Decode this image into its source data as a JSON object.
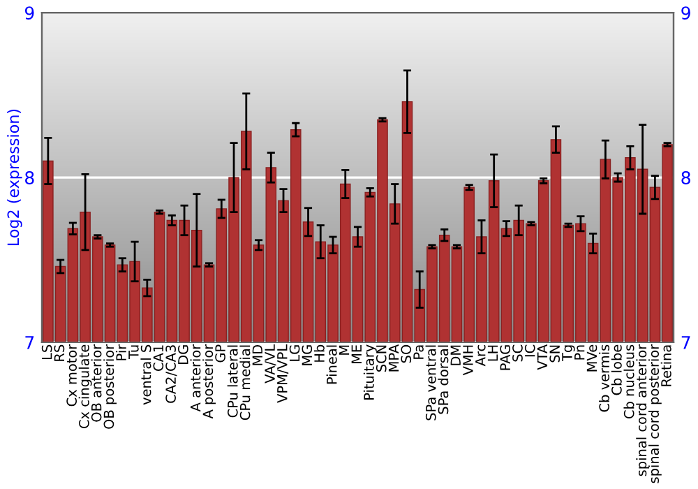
{
  "chart_data": {
    "type": "bar",
    "ylabel": "Log2 (expression)",
    "categories": [
      "LS",
      "RS",
      "Cx motor",
      "Cx cingulate",
      "OB anterior",
      "OB posterior",
      "Pir",
      "Tu",
      "ventral S",
      "CA1",
      "CA2/CA3",
      "DG",
      "A anterior",
      "A posterior",
      "GP",
      "CPu lateral",
      "CPu medial",
      "MD",
      "VA/VL",
      "VPM/VPL",
      "LG",
      "MG",
      "Hb",
      "Pineal",
      "M",
      "ME",
      "Pituitary",
      "SCN",
      "MPA",
      "SO",
      "Pa",
      "SPa ventral",
      "SPa dorsal",
      "DM",
      "VMH",
      "Arc",
      "LH",
      "PAG",
      "SC",
      "IC",
      "VTA",
      "SN",
      "Tg",
      "Pn",
      "MVe",
      "Cb vermis",
      "Cb lobe",
      "Cb nucleus",
      "spinal cord anterior",
      "spinal cord posterior",
      "Retina"
    ],
    "values": [
      8.1,
      7.46,
      7.69,
      7.79,
      7.64,
      7.59,
      7.47,
      7.49,
      7.33,
      7.79,
      7.74,
      7.74,
      7.68,
      7.47,
      7.81,
      8.0,
      8.28,
      7.59,
      8.06,
      7.86,
      8.29,
      7.73,
      7.61,
      7.59,
      7.96,
      7.64,
      7.91,
      8.35,
      7.84,
      8.46,
      7.32,
      7.58,
      7.65,
      7.58,
      7.94,
      7.64,
      7.98,
      7.69,
      7.74,
      7.72,
      7.98,
      8.23,
      7.71,
      7.72,
      7.6,
      8.11,
      8.0,
      8.12,
      8.05,
      7.94,
      8.2
    ],
    "errors": [
      0.14,
      0.04,
      0.035,
      0.23,
      0.01,
      0.01,
      0.04,
      0.12,
      0.05,
      0.01,
      0.03,
      0.09,
      0.22,
      0.01,
      0.055,
      0.21,
      0.23,
      0.03,
      0.09,
      0.07,
      0.04,
      0.085,
      0.1,
      0.05,
      0.085,
      0.06,
      0.025,
      0.01,
      0.12,
      0.19,
      0.11,
      0.01,
      0.035,
      0.01,
      0.015,
      0.1,
      0.16,
      0.045,
      0.09,
      0.01,
      0.015,
      0.08,
      0.01,
      0.045,
      0.06,
      0.115,
      0.025,
      0.07,
      0.27,
      0.07,
      0.01
    ],
    "color": "#b03232",
    "ylim": [
      7,
      9
    ],
    "yticks": [
      7,
      8,
      9
    ],
    "y2lim": [
      7,
      9
    ],
    "y2ticks": [
      7,
      8,
      9
    ],
    "grid": "y"
  }
}
